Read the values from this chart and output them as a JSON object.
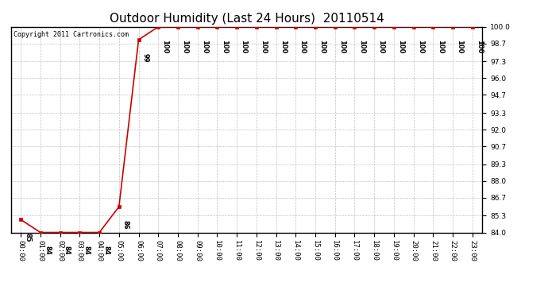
{
  "title": "Outdoor Humidity (Last 24 Hours)  20110514",
  "copyright": "Copyright 2011 Cartronics.com",
  "x_labels": [
    "00:00",
    "01:00",
    "02:00",
    "03:00",
    "04:00",
    "05:00",
    "06:00",
    "07:00",
    "08:00",
    "09:00",
    "10:00",
    "11:00",
    "12:00",
    "13:00",
    "14:00",
    "15:00",
    "16:00",
    "17:00",
    "18:00",
    "19:00",
    "20:00",
    "21:00",
    "22:00",
    "23:00"
  ],
  "hours": [
    0,
    1,
    2,
    3,
    4,
    5,
    6,
    7,
    8,
    9,
    10,
    11,
    12,
    13,
    14,
    15,
    16,
    17,
    18,
    19,
    20,
    21,
    22,
    23
  ],
  "values": [
    85,
    84,
    84,
    84,
    84,
    86,
    99,
    100,
    100,
    100,
    100,
    100,
    100,
    100,
    100,
    100,
    100,
    100,
    100,
    100,
    100,
    100,
    100,
    100
  ],
  "ylim_min": 84.0,
  "ylim_max": 100.0,
  "yticks": [
    84.0,
    85.3,
    86.7,
    88.0,
    89.3,
    90.7,
    92.0,
    93.3,
    94.7,
    96.0,
    97.3,
    98.7,
    100.0
  ],
  "line_color": "#cc0000",
  "marker": "s",
  "marker_color": "#cc0000",
  "marker_size": 3,
  "bg_color": "#ffffff",
  "plot_bg_color": "#ffffff",
  "grid_color": "#bbbbbb",
  "title_fontsize": 11,
  "tick_fontsize": 6.5,
  "annot_fontsize": 6,
  "copyright_fontsize": 6
}
